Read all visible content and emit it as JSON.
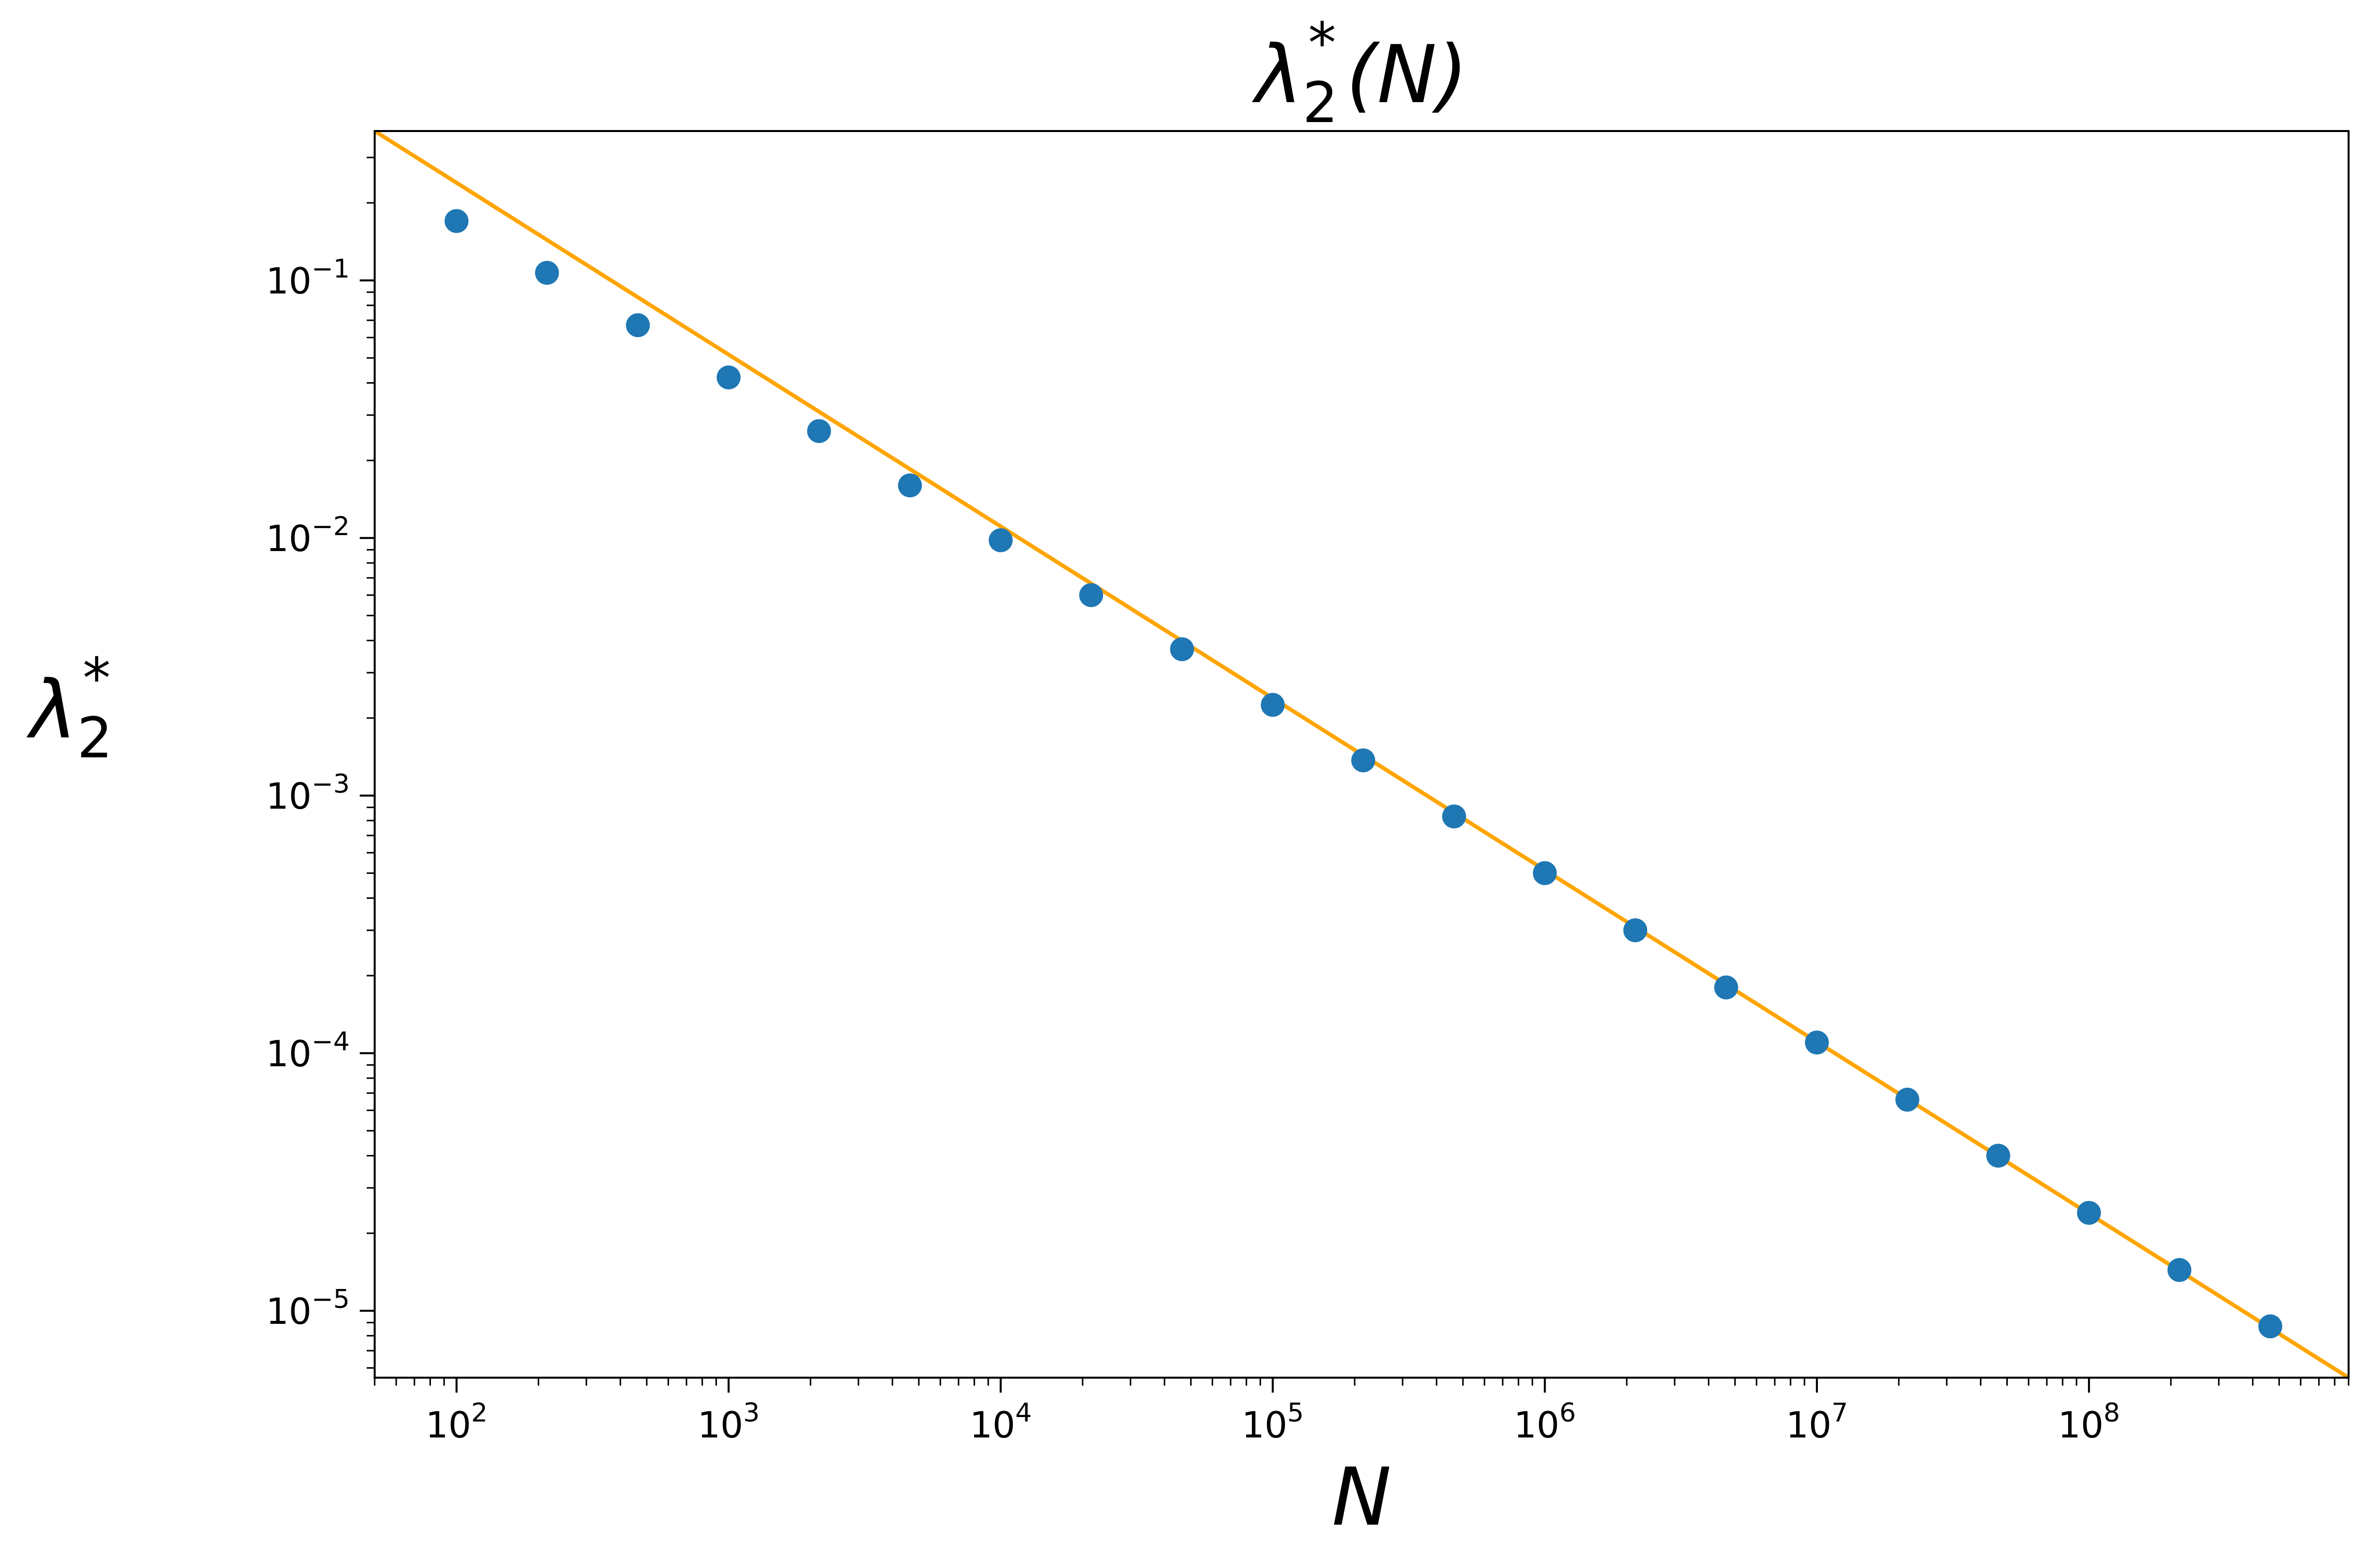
{
  "chart_data": {
    "type": "scatter",
    "title": {
      "base": "λ",
      "sub": "2",
      "sup": "*",
      "suffix": "(N)"
    },
    "xlabel": "N",
    "ylabel": {
      "base": "λ",
      "sub": "2",
      "sup": "*"
    },
    "xscale": "log",
    "yscale": "log",
    "xlim": [
      50,
      900000000
    ],
    "ylim": [
      5.5e-06,
      0.38
    ],
    "x_ticks": [
      {
        "value": 100,
        "base": "10",
        "exp": "2"
      },
      {
        "value": 1000,
        "base": "10",
        "exp": "3"
      },
      {
        "value": 10000,
        "base": "10",
        "exp": "4"
      },
      {
        "value": 100000,
        "base": "10",
        "exp": "5"
      },
      {
        "value": 1000000,
        "base": "10",
        "exp": "6"
      },
      {
        "value": 10000000,
        "base": "10",
        "exp": "7"
      },
      {
        "value": 100000000,
        "base": "10",
        "exp": "8"
      }
    ],
    "y_ticks": [
      {
        "value": 0.1,
        "base": "10",
        "exp": "−1"
      },
      {
        "value": 0.01,
        "base": "10",
        "exp": "−2"
      },
      {
        "value": 0.001,
        "base": "10",
        "exp": "−3"
      },
      {
        "value": 0.0001,
        "base": "10",
        "exp": "−4"
      },
      {
        "value": 1e-05,
        "base": "10",
        "exp": "−5"
      }
    ],
    "grid": false,
    "series": [
      {
        "kind": "scatter",
        "color": "#1f77b4",
        "x": [
          100,
          215,
          464,
          1000,
          2150,
          4640,
          10000,
          21500,
          46400,
          100000,
          215000,
          464000,
          1000000,
          2150000,
          4640000,
          10000000,
          21500000,
          46400000,
          100000000,
          215000000,
          464000000
        ],
        "y": [
          0.17,
          0.107,
          0.067,
          0.042,
          0.026,
          0.016,
          0.0098,
          0.006,
          0.0037,
          0.00225,
          0.00137,
          0.00083,
          0.0005,
          0.0003,
          0.00018,
          0.00011,
          6.6e-05,
          4e-05,
          2.4e-05,
          1.44e-05,
          8.7e-06
        ]
      },
      {
        "kind": "line",
        "color": "#ffa500",
        "x": [
          50,
          900000000
        ],
        "y": [
          0.38,
          5.5e-06
        ]
      }
    ]
  }
}
